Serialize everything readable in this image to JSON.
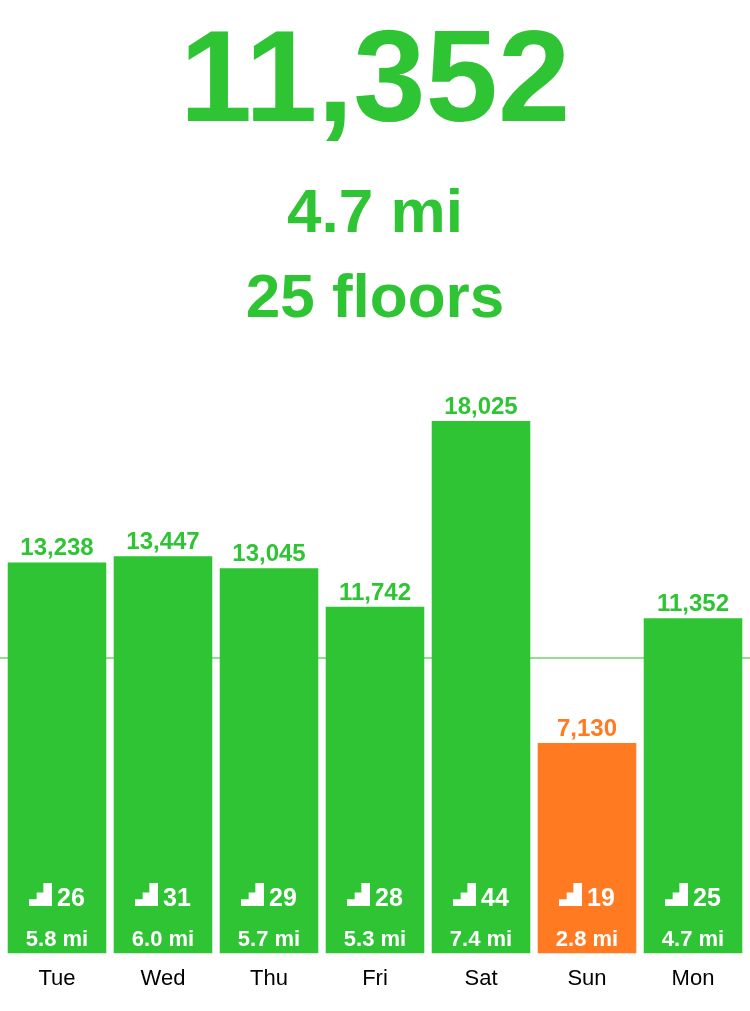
{
  "chart_data": {
    "type": "bar",
    "title": "11,352",
    "subtitle": "4.7 mi",
    "categories": [
      "Tue",
      "Wed",
      "Thu",
      "Fri",
      "Sat",
      "Sun",
      "Mon"
    ],
    "values": [
      13238,
      13447,
      13045,
      11742,
      18025,
      7130,
      11352
    ],
    "value_labels": [
      "13,238",
      "13,447",
      "13,045",
      "11,742",
      "18,025",
      "7,130",
      "11,352"
    ],
    "colors": [
      "#2ec434",
      "#2ec434",
      "#2ec434",
      "#2ec434",
      "#2ec434",
      "#ff7a21",
      "#2ec434"
    ],
    "ref_lines": [
      {
        "axis": "y",
        "value": 10000,
        "color": "#93de93"
      }
    ],
    "annotations": [
      "25 floors",
      "26",
      "5.8 mi",
      "31",
      "6.0 mi",
      "29",
      "5.7 mi",
      "28",
      "5.3 mi",
      "44",
      "7.4 mi",
      "19",
      "2.8 mi",
      "25",
      "4.7 mi"
    ]
  }
}
